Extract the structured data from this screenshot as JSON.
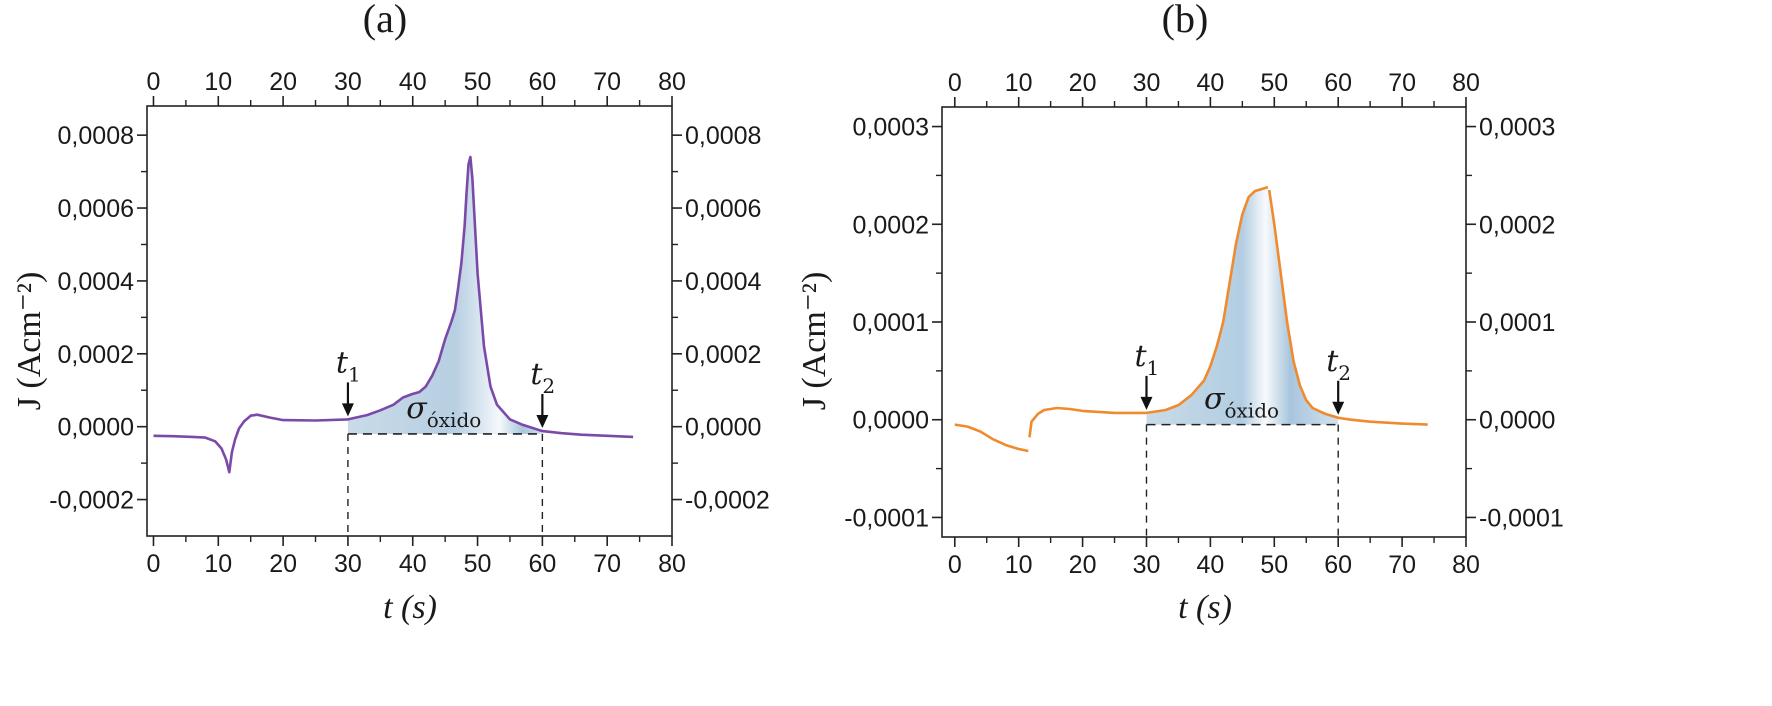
{
  "chart_data": [
    {
      "type": "line",
      "panel_label": "(a)",
      "xlabel": "t (s)",
      "ylabel": "J (Acm⁻²)",
      "xlim": [
        -1,
        80
      ],
      "ylim": [
        -0.0003,
        0.00088
      ],
      "x_ticks": [
        0,
        10,
        20,
        30,
        40,
        50,
        60,
        70,
        80
      ],
      "x_tick_labels": [
        "0",
        "10",
        "20",
        "30",
        "40",
        "50",
        "60",
        "70",
        "80"
      ],
      "y_ticks": [
        -0.0002,
        0,
        0.0002,
        0.0004,
        0.0006,
        0.0008
      ],
      "y_tick_labels_left": [
        "-0,0002",
        "0,0000",
        "0,0002",
        "0,0004",
        "0,0006",
        "0,0008"
      ],
      "y_tick_labels_right": [
        "-0,0002",
        "0,0000",
        "0,0002",
        "0,0004",
        "0,0006",
        "0,0008"
      ],
      "grid": false,
      "series": [
        {
          "color": "#7b4aa8",
          "x": [
            0,
            3,
            6,
            8,
            9.5,
            10.5,
            11.2,
            11.7,
            12.1,
            12.6,
            13.2,
            14,
            15,
            16,
            18,
            20,
            25,
            30,
            33,
            35,
            37,
            38.5,
            40,
            41,
            42,
            43,
            44,
            45,
            46,
            46.5,
            47,
            47.5,
            48,
            48.3,
            48.6,
            48.9,
            49.2,
            49.6,
            50,
            51,
            52,
            53,
            55,
            57,
            60,
            63,
            66,
            70,
            74
          ],
          "y": [
            -2.5e-05,
            -2.6e-05,
            -2.8e-05,
            -3e-05,
            -4e-05,
            -6e-05,
            -9e-05,
            -0.000125,
            -7e-05,
            -3.5e-05,
            -5e-06,
            1.5e-05,
            3e-05,
            3.3e-05,
            2.5e-05,
            1.8e-05,
            1.7e-05,
            2e-05,
            3.2e-05,
            4.5e-05,
            6e-05,
            8e-05,
            9e-05,
            9.5e-05,
            0.00011,
            0.00014,
            0.00018,
            0.00024,
            0.00029,
            0.00032,
            0.00038,
            0.00045,
            0.00055,
            0.00064,
            0.00072,
            0.00074,
            0.00068,
            0.00055,
            0.00042,
            0.00022,
            0.00011,
            6e-05,
            2e-05,
            5e-06,
            -1.2e-05,
            -1.8e-05,
            -2.2e-05,
            -2.5e-05,
            -2.8e-05
          ]
        }
      ],
      "shaded_area": {
        "label": "σ",
        "label_sub": "óxido",
        "x_start": 30,
        "x_end": 60
      },
      "baseline": {
        "x_start": 30,
        "x_end": 60,
        "y": -2e-05
      },
      "markers": [
        {
          "label": "t",
          "sub": "1",
          "x": 30
        },
        {
          "label": "t",
          "sub": "2",
          "x": 60
        }
      ]
    },
    {
      "type": "line",
      "panel_label": "(b)",
      "xlabel": "t (s)",
      "ylabel": "J (Acm⁻²)",
      "xlim": [
        -2,
        80
      ],
      "ylim": [
        -0.00012,
        0.00032
      ],
      "x_ticks": [
        0,
        10,
        20,
        30,
        40,
        50,
        60,
        70,
        80
      ],
      "x_tick_labels": [
        "0",
        "10",
        "20",
        "30",
        "40",
        "50",
        "60",
        "70",
        "80"
      ],
      "y_ticks": [
        -0.0001,
        0,
        0.0001,
        0.0002,
        0.0003
      ],
      "y_tick_labels_left": [
        "-0,0001",
        "0,0000",
        "0,0001",
        "0,0002",
        "0,0003"
      ],
      "y_tick_labels_right": [
        "-0,0001",
        "0,0000",
        "0,0001",
        "0,0002",
        "0,0003"
      ],
      "grid": false,
      "series": [
        {
          "color": "#ef8a2e",
          "x": [
            0,
            2,
            4,
            6,
            8,
            10,
            11.5,
            null,
            11.7,
            12,
            13,
            14,
            16,
            18,
            20,
            25,
            30,
            33,
            35,
            37,
            39,
            40,
            41,
            42,
            43,
            44,
            45,
            46,
            47,
            48,
            49,
            null,
            49.2,
            50,
            51,
            52,
            53,
            54,
            55,
            56,
            58,
            60,
            62,
            65,
            70,
            74
          ],
          "y": [
            -5e-06,
            -7e-06,
            -1.2e-05,
            -2e-05,
            -2.6e-05,
            -3e-05,
            -3.2e-05,
            null,
            -1.8e-05,
            -2e-06,
            6e-06,
            1e-05,
            1.2e-05,
            1.1e-05,
            9e-06,
            7e-06,
            7e-06,
            1e-05,
            1.5e-05,
            2.5e-05,
            4e-05,
            5.5e-05,
            7.5e-05,
            0.0001,
            0.00014,
            0.00018,
            0.00021,
            0.000228,
            0.000234,
            0.000236,
            0.000238,
            null,
            0.000235,
            0.0002,
            0.00015,
            0.0001,
            6e-05,
            3.5e-05,
            2e-05,
            1.2e-05,
            6e-06,
            2e-06,
            0.0,
            -2e-06,
            -4e-06,
            -5e-06
          ]
        }
      ],
      "shaded_area": {
        "label": "σ",
        "label_sub": "óxido",
        "x_start": 30,
        "x_end": 60
      },
      "baseline": {
        "x_start": 30,
        "x_end": 60,
        "y": -5e-06
      },
      "markers": [
        {
          "label": "t",
          "sub": "1",
          "x": 30
        },
        {
          "label": "t",
          "sub": "2",
          "x": 60
        }
      ]
    }
  ]
}
